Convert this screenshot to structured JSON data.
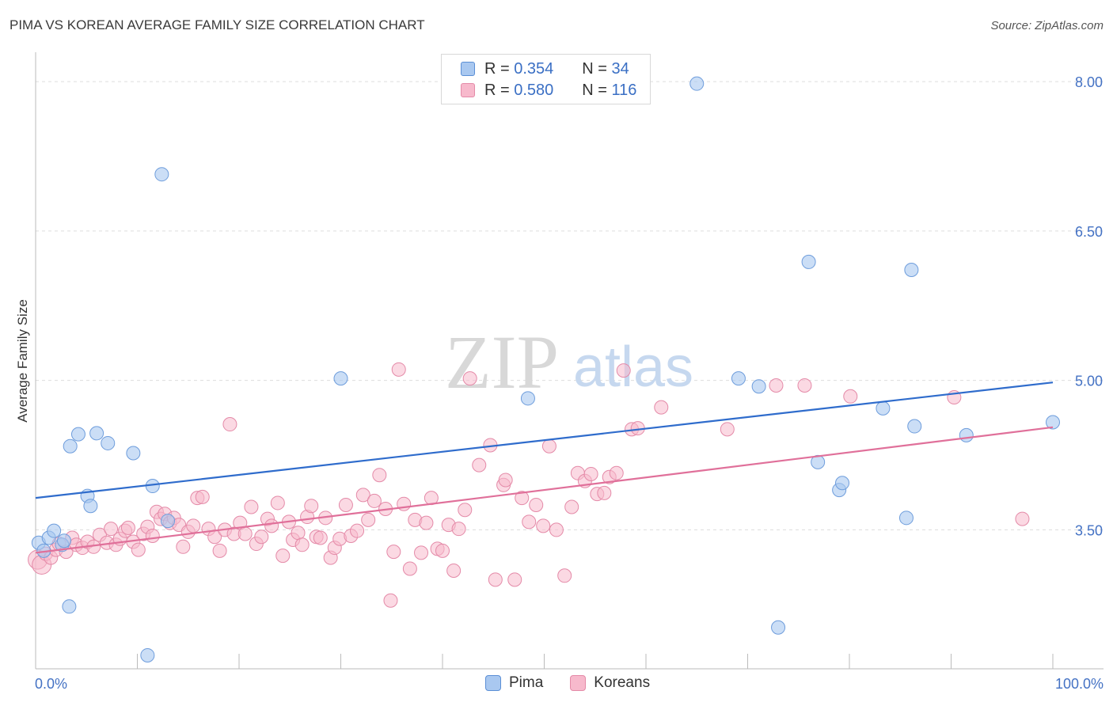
{
  "title": "PIMA VS KOREAN AVERAGE FAMILY SIZE CORRELATION CHART",
  "source": "Source: ZipAtlas.com",
  "watermark": {
    "zip": "ZIP",
    "atlas": "atlas"
  },
  "legend_top": {
    "rows": [
      {
        "r_label": "R =",
        "r_value": "0.354",
        "n_label": "N =",
        "n_value": "34",
        "color": "#a9c8f0",
        "border": "#5b8fd6"
      },
      {
        "r_label": "R =",
        "r_value": "0.580",
        "n_label": "N =",
        "n_value": "116",
        "color": "#f7b9cc",
        "border": "#e48aa8"
      }
    ]
  },
  "legend_bottom": [
    "Pima",
    "Koreans"
  ],
  "colors": {
    "pima_fill": "#a9c8f0",
    "pima_stroke": "#6e9ddc",
    "pima_line": "#2f6ccc",
    "korean_fill": "#f7b9cc",
    "korean_stroke": "#e48aa8",
    "korean_line": "#e0709a",
    "tick_text": "#4472c4",
    "grid": "#dddddd"
  },
  "chart_data": {
    "type": "scatter",
    "title": "PIMA VS KOREAN AVERAGE FAMILY SIZE CORRELATION CHART",
    "xlabel": "",
    "ylabel": "Average Family Size",
    "xlim": [
      0,
      100
    ],
    "ylim": [
      2.2,
      8.2
    ],
    "x_tick_labels": [
      "0.0%",
      "100.0%"
    ],
    "y_ticks": [
      3.5,
      5.0,
      6.5,
      8.0
    ],
    "y_tick_labels": [
      "3.50",
      "5.00",
      "6.50",
      "8.00"
    ],
    "grid": true,
    "series": [
      {
        "name": "Pima",
        "trend": {
          "x": [
            0,
            100
          ],
          "y": [
            3.82,
            4.98
          ]
        },
        "points": [
          [
            0.3,
            3.37
          ],
          [
            0.8,
            3.29
          ],
          [
            1.3,
            3.42
          ],
          [
            1.8,
            3.49
          ],
          [
            2.6,
            3.35
          ],
          [
            2.8,
            3.39
          ],
          [
            3.3,
            2.73
          ],
          [
            3.4,
            4.34
          ],
          [
            4.2,
            4.46
          ],
          [
            5.1,
            3.84
          ],
          [
            5.4,
            3.74
          ],
          [
            6.0,
            4.47
          ],
          [
            7.1,
            4.37
          ],
          [
            9.6,
            4.27
          ],
          [
            11.0,
            2.24
          ],
          [
            11.5,
            3.94
          ],
          [
            12.4,
            7.07
          ],
          [
            13.0,
            3.59
          ],
          [
            30.0,
            5.02
          ],
          [
            48.4,
            4.82
          ],
          [
            65.0,
            7.98
          ],
          [
            69.1,
            5.02
          ],
          [
            71.1,
            4.94
          ],
          [
            73.0,
            2.52
          ],
          [
            76.0,
            6.19
          ],
          [
            76.9,
            4.18
          ],
          [
            79.0,
            3.9
          ],
          [
            79.3,
            3.97
          ],
          [
            83.3,
            4.72
          ],
          [
            85.6,
            3.62
          ],
          [
            86.1,
            6.11
          ],
          [
            86.4,
            4.54
          ],
          [
            91.5,
            4.45
          ],
          [
            100.0,
            4.58
          ]
        ]
      },
      {
        "name": "Koreans",
        "trend": {
          "x": [
            0,
            100
          ],
          "y": [
            3.27,
            4.53
          ]
        },
        "points": [
          [
            0.2,
            3.2
          ],
          [
            0.6,
            3.15
          ],
          [
            1.0,
            3.26
          ],
          [
            1.5,
            3.22
          ],
          [
            2.0,
            3.3
          ],
          [
            2.3,
            3.36
          ],
          [
            3.0,
            3.28
          ],
          [
            3.6,
            3.42
          ],
          [
            4.0,
            3.35
          ],
          [
            4.6,
            3.32
          ],
          [
            5.1,
            3.38
          ],
          [
            5.7,
            3.33
          ],
          [
            6.3,
            3.45
          ],
          [
            7.0,
            3.37
          ],
          [
            7.4,
            3.51
          ],
          [
            7.9,
            3.35
          ],
          [
            8.3,
            3.41
          ],
          [
            8.8,
            3.49
          ],
          [
            9.1,
            3.52
          ],
          [
            9.6,
            3.38
          ],
          [
            10.1,
            3.3
          ],
          [
            10.6,
            3.46
          ],
          [
            11.0,
            3.53
          ],
          [
            11.5,
            3.44
          ],
          [
            11.9,
            3.68
          ],
          [
            12.3,
            3.61
          ],
          [
            12.7,
            3.66
          ],
          [
            13.2,
            3.57
          ],
          [
            13.6,
            3.62
          ],
          [
            14.1,
            3.55
          ],
          [
            14.5,
            3.33
          ],
          [
            15.0,
            3.48
          ],
          [
            15.5,
            3.54
          ],
          [
            15.9,
            3.82
          ],
          [
            16.4,
            3.83
          ],
          [
            17.0,
            3.51
          ],
          [
            17.6,
            3.43
          ],
          [
            18.1,
            3.29
          ],
          [
            18.6,
            3.5
          ],
          [
            19.1,
            4.56
          ],
          [
            19.5,
            3.46
          ],
          [
            20.1,
            3.57
          ],
          [
            20.6,
            3.46
          ],
          [
            21.2,
            3.73
          ],
          [
            21.7,
            3.36
          ],
          [
            22.2,
            3.43
          ],
          [
            22.8,
            3.61
          ],
          [
            23.2,
            3.54
          ],
          [
            23.8,
            3.77
          ],
          [
            24.3,
            3.24
          ],
          [
            24.9,
            3.58
          ],
          [
            25.3,
            3.4
          ],
          [
            25.8,
            3.47
          ],
          [
            26.2,
            3.35
          ],
          [
            26.7,
            3.63
          ],
          [
            27.1,
            3.74
          ],
          [
            27.6,
            3.43
          ],
          [
            28.0,
            3.42
          ],
          [
            28.5,
            3.62
          ],
          [
            29.0,
            3.22
          ],
          [
            29.4,
            3.32
          ],
          [
            29.9,
            3.41
          ],
          [
            30.5,
            3.75
          ],
          [
            31.0,
            3.44
          ],
          [
            31.6,
            3.49
          ],
          [
            32.2,
            3.85
          ],
          [
            32.7,
            3.6
          ],
          [
            33.3,
            3.79
          ],
          [
            33.8,
            4.05
          ],
          [
            34.4,
            3.71
          ],
          [
            34.9,
            2.79
          ],
          [
            35.2,
            3.28
          ],
          [
            35.7,
            5.11
          ],
          [
            36.2,
            3.76
          ],
          [
            36.8,
            3.11
          ],
          [
            37.3,
            3.6
          ],
          [
            37.9,
            3.27
          ],
          [
            38.4,
            3.57
          ],
          [
            38.9,
            3.82
          ],
          [
            39.5,
            3.31
          ],
          [
            40.0,
            3.29
          ],
          [
            40.6,
            3.55
          ],
          [
            41.1,
            3.09
          ],
          [
            41.6,
            3.51
          ],
          [
            42.2,
            3.7
          ],
          [
            42.7,
            5.02
          ],
          [
            43.6,
            4.15
          ],
          [
            44.7,
            4.35
          ],
          [
            45.2,
            3.0
          ],
          [
            46.0,
            3.95
          ],
          [
            46.2,
            4.0
          ],
          [
            47.1,
            3.0
          ],
          [
            47.8,
            3.82
          ],
          [
            48.5,
            3.58
          ],
          [
            49.2,
            3.75
          ],
          [
            49.9,
            3.54
          ],
          [
            50.5,
            4.34
          ],
          [
            51.2,
            3.5
          ],
          [
            52.0,
            3.04
          ],
          [
            52.7,
            3.73
          ],
          [
            53.3,
            4.07
          ],
          [
            54.0,
            3.99
          ],
          [
            54.6,
            4.06
          ],
          [
            55.2,
            3.86
          ],
          [
            55.9,
            3.87
          ],
          [
            56.4,
            4.03
          ],
          [
            57.1,
            4.07
          ],
          [
            57.8,
            5.1
          ],
          [
            58.6,
            4.51
          ],
          [
            59.2,
            4.52
          ],
          [
            61.5,
            4.73
          ],
          [
            68.0,
            4.51
          ],
          [
            72.8,
            4.95
          ],
          [
            75.6,
            4.95
          ],
          [
            80.1,
            4.84
          ],
          [
            90.3,
            4.83
          ],
          [
            97.0,
            3.61
          ]
        ]
      }
    ]
  }
}
